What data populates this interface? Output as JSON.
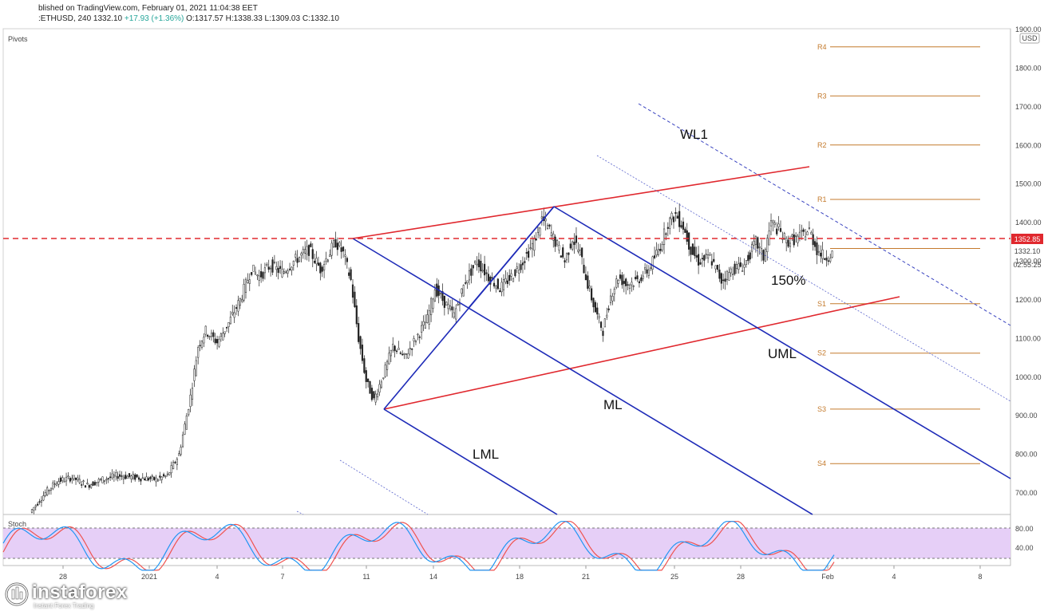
{
  "header": {
    "line1": "blished on TradingView.com, February 01, 2021 11:04:38 EET",
    "symbol": ":ETHUSD, 240",
    "price": "1332.10",
    "change": "+17.93 (+1.36%)",
    "ohlc": "O:1317.57 H:1338.33 L:1309.03 C:1332.10"
  },
  "indicator_label": "Pivots",
  "stoch_label": "Stoch",
  "currency": "USD",
  "price_tags": {
    "resistance": "1352.85",
    "last": "1332.10",
    "countdown": "02:55:25"
  },
  "colors": {
    "red_line": "#e0282e",
    "blue_line": "#1e2bb8",
    "pivot": "#c47a2c",
    "stoch_fill": "#e6cff7",
    "stoch_k": "#2196f3",
    "stoch_d": "#ef5350"
  },
  "annotations": {
    "wl1": "WL1",
    "uml": "UML",
    "ml": "ML",
    "lml": "LML",
    "pct": "150%"
  },
  "logo": {
    "brand": "instaforex",
    "tag": "Instant Forex Trading"
  },
  "chart_data": {
    "type": "candlestick",
    "y_ticks": [
      "1900.00",
      "1800.00",
      "1700.00",
      "1600.00",
      "1500.00",
      "1400.00",
      "1300.00",
      "1200.00",
      "1100.00",
      "1000.00",
      "900.00",
      "800.00",
      "700.00"
    ],
    "y_values": [
      1900,
      1800,
      1700,
      1600,
      1500,
      1400,
      1300,
      1200,
      1100,
      1000,
      900,
      800,
      700
    ],
    "x_ticks": [
      "28",
      "2021",
      "4",
      "7",
      "11",
      "14",
      "18",
      "21",
      "25",
      "28",
      "Feb",
      "4",
      "8"
    ],
    "stoch_ticks": [
      "80.00",
      "40.00"
    ],
    "pivots": [
      {
        "name": "R4",
        "value": 1855
      },
      {
        "name": "R3",
        "value": 1728
      },
      {
        "name": "R2",
        "value": 1601
      },
      {
        "name": "R1",
        "value": 1460
      },
      {
        "name": "P",
        "value": 1333
      },
      {
        "name": "S1",
        "value": 1190
      },
      {
        "name": "S2",
        "value": 1062
      },
      {
        "name": "S3",
        "value": 917
      },
      {
        "name": "S4",
        "value": 776
      }
    ],
    "resistance": 1352.85,
    "last": 1332.1
  }
}
